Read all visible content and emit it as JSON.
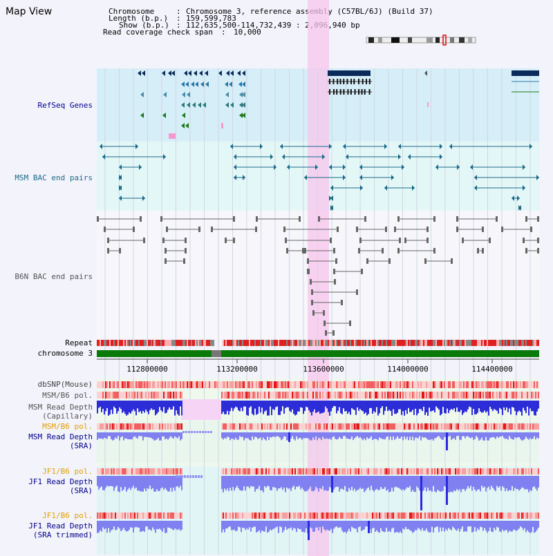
{
  "title": "Map View",
  "header": {
    "chromosome_label": "Chromosome",
    "chromosome_value": "Chromosome 3, reference assembly (C57BL/6J) (Build 37)",
    "length_label": "Length (b.p.)",
    "length_value": "159,599,783",
    "show_label": "Show (b.p.)",
    "show_value": "112,635,500-114,732,439 : 2,096,940 bp",
    "coverage_label": "Read coverage check span",
    "coverage_value": "10,000"
  },
  "tracks": {
    "refseq": "RefSeq Genes",
    "msm_bac": "MSM BAC end pairs",
    "b6n_bac": "B6N BAC end pairs",
    "repeat": "Repeat",
    "chromosome": "chromosome 3",
    "dbsnp": "dbSNP(Mouse)",
    "msm_b6_pol_1": "MSM/B6 pol.",
    "msm_read_depth_cap_1": "MSM Read Depth",
    "msm_read_depth_cap_2": "(Capillary)",
    "msm_b6_pol_2": "MSM/B6 pol.",
    "msm_read_depth_sra_1": "MSM Read Depth",
    "msm_read_depth_sra_2": "(SRA)",
    "jf1_b6_pol_1": "JF1/B6 pol.",
    "jf1_read_depth_sra_1": "JF1 Read Depth",
    "jf1_read_depth_sra_2": "(SRA)",
    "jf1_b6_pol_2": "JF1/B6 pol.",
    "jf1_read_depth_trim_1": "JF1 Read Depth",
    "jf1_read_depth_trim_2": "(SRA trimmed)"
  },
  "axis_ticks": [
    "112800000",
    "113200000",
    "113600000",
    "114000000",
    "114400000"
  ],
  "colors": {
    "gene_dark": "#0a2a5a",
    "gene_green": "#1a7a1a",
    "msm_blue": "#1a6a8a",
    "b6n_gray": "#666666",
    "highlight": "#f7c6ec",
    "depth_blue": "#2a2ae0",
    "depth_light": "#8080f0",
    "label_navy": "#00008b",
    "label_orange": "#e0a000"
  }
}
